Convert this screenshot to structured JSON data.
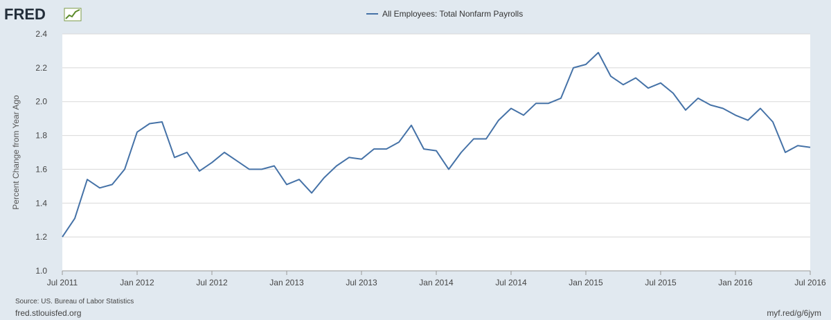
{
  "logo": {
    "text": "FRED"
  },
  "chart_data": {
    "type": "line",
    "title": "",
    "legend_position": "top-center",
    "ylabel": "Percent Change from Year Ago",
    "xlabel": "",
    "ylim": [
      1.0,
      2.4
    ],
    "y_ticks": [
      "1.0",
      "1.2",
      "1.4",
      "1.6",
      "1.8",
      "2.0",
      "2.2",
      "2.4"
    ],
    "x_ticks": [
      "Jul 2011",
      "Jan 2012",
      "Jul 2012",
      "Jan 2013",
      "Jul 2013",
      "Jan 2014",
      "Jul 2014",
      "Jan 2015",
      "Jul 2015",
      "Jan 2016",
      "Jul 2016"
    ],
    "grid": true,
    "color": "#4572a7",
    "series": [
      {
        "name": "All Employees: Total Nonfarm Payrolls",
        "x": [
          "2011-07",
          "2011-08",
          "2011-09",
          "2011-10",
          "2011-11",
          "2011-12",
          "2012-01",
          "2012-02",
          "2012-03",
          "2012-04",
          "2012-05",
          "2012-06",
          "2012-07",
          "2012-08",
          "2012-09",
          "2012-10",
          "2012-11",
          "2012-12",
          "2013-01",
          "2013-02",
          "2013-03",
          "2013-04",
          "2013-05",
          "2013-06",
          "2013-07",
          "2013-08",
          "2013-09",
          "2013-10",
          "2013-11",
          "2013-12",
          "2014-01",
          "2014-02",
          "2014-03",
          "2014-04",
          "2014-05",
          "2014-06",
          "2014-07",
          "2014-08",
          "2014-09",
          "2014-10",
          "2014-11",
          "2014-12",
          "2015-01",
          "2015-02",
          "2015-03",
          "2015-04",
          "2015-05",
          "2015-06",
          "2015-07",
          "2015-08",
          "2015-09",
          "2015-10",
          "2015-11",
          "2015-12",
          "2016-01",
          "2016-02",
          "2016-03",
          "2016-04",
          "2016-05",
          "2016-06",
          "2016-07"
        ],
        "values": [
          1.2,
          1.31,
          1.54,
          1.49,
          1.51,
          1.6,
          1.82,
          1.87,
          1.88,
          1.67,
          1.7,
          1.59,
          1.64,
          1.7,
          1.65,
          1.6,
          1.6,
          1.62,
          1.51,
          1.54,
          1.46,
          1.55,
          1.62,
          1.67,
          1.66,
          1.72,
          1.72,
          1.76,
          1.86,
          1.72,
          1.71,
          1.6,
          1.7,
          1.78,
          1.78,
          1.89,
          1.96,
          1.92,
          1.99,
          1.99,
          2.02,
          2.2,
          2.22,
          2.29,
          2.15,
          2.1,
          2.14,
          2.08,
          2.11,
          2.05,
          1.95,
          2.02,
          1.98,
          1.96,
          1.92,
          1.89,
          1.96,
          1.88,
          1.7,
          1.74,
          1.73
        ]
      }
    ]
  },
  "footer": {
    "source": "Source: US. Bureau of Labor Statistics",
    "site": "fred.stlouisfed.org",
    "shortlink": "myf.red/g/6jym"
  }
}
